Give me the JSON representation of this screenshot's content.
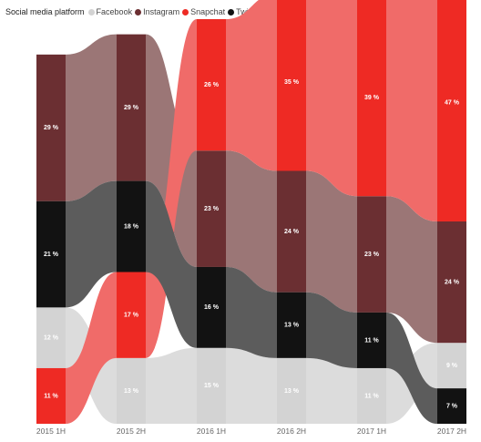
{
  "legend": {
    "title": "Social media platform",
    "items": [
      {
        "label": "Facebook",
        "color": "#d3d3d3"
      },
      {
        "label": "Instagram",
        "color": "#6b2f32"
      },
      {
        "label": "Snapchat",
        "color": "#ee2a24"
      },
      {
        "label": "Twitter",
        "color": "#121212"
      }
    ]
  },
  "chart_data": {
    "type": "bar",
    "subtype": "ribbon",
    "categories": [
      "2015 1H",
      "2015 2H",
      "2016 1H",
      "2016 2H",
      "2017 1H",
      "2017 2H"
    ],
    "series": [
      {
        "name": "Facebook",
        "color": "#d3d3d3",
        "label_color": "#ffffff",
        "values": [
          12,
          13,
          15,
          13,
          11,
          9
        ]
      },
      {
        "name": "Instagram",
        "color": "#6b2f32",
        "label_color": "#ffffff",
        "values": [
          29,
          29,
          23,
          24,
          23,
          24
        ]
      },
      {
        "name": "Snapchat",
        "color": "#ee2a24",
        "label_color": "#ffffff",
        "values": [
          11,
          17,
          26,
          35,
          39,
          47
        ]
      },
      {
        "name": "Twitter",
        "color": "#121212",
        "label_color": "#ffffff",
        "values": [
          21,
          18,
          16,
          13,
          11,
          7
        ]
      }
    ],
    "value_suffix": " %",
    "xlabel": "",
    "ylabel": "",
    "grid": false,
    "legend_position": "top-left",
    "ribbon_colors": {
      "Facebook": "#dcdcdc",
      "Instagram": "#9b7676",
      "Snapchat": "#f06b69",
      "Twitter": "#5c5c5c"
    }
  }
}
